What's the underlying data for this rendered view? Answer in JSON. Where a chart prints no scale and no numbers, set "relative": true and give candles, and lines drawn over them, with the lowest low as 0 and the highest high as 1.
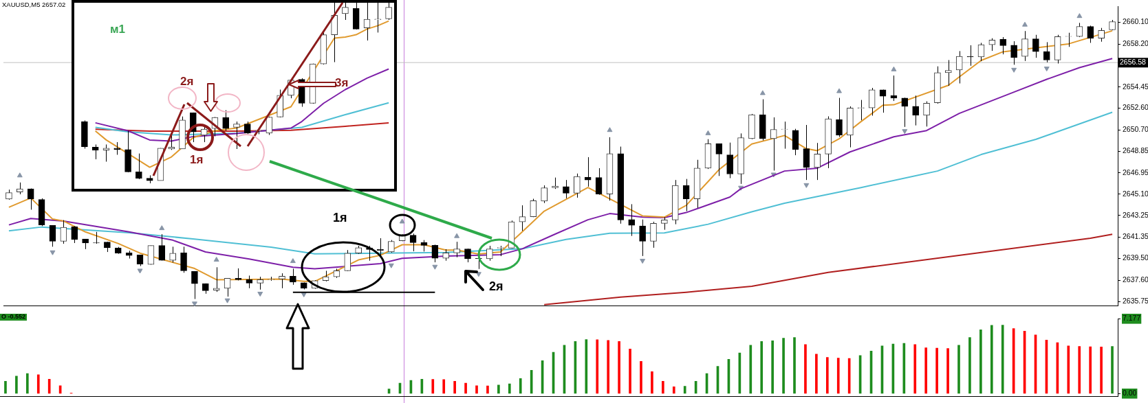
{
  "chart_data": [
    {
      "type": "candlestick",
      "title": "XAUUSD,M5 2657.02",
      "tick_labels": "y",
      "categories": [
        null,
        null,
        null,
        null,
        null,
        null,
        null,
        null,
        null,
        null,
        null,
        null,
        null,
        null,
        null,
        null,
        null,
        null,
        null,
        null,
        null,
        null,
        null,
        null,
        null,
        null,
        null,
        null,
        null,
        null,
        null,
        null,
        null,
        null,
        null,
        null,
        null,
        null,
        null,
        null,
        null,
        null,
        null,
        null,
        null,
        null,
        null,
        null,
        null,
        null,
        null,
        null,
        null,
        null,
        null,
        null,
        null,
        null,
        null,
        null,
        null,
        null,
        null,
        null,
        null,
        null,
        null,
        null,
        null,
        null,
        null,
        null,
        null,
        null,
        null,
        null,
        null,
        null,
        null,
        null,
        null,
        null,
        null,
        null,
        null,
        null,
        null,
        null,
        null,
        null,
        null,
        null,
        null,
        null,
        null,
        null,
        null,
        null,
        null,
        null,
        null,
        null
      ],
      "ohlc": [
        [
          2644.68,
          2645.5,
          2644.62,
          2645.23
        ],
        [
          2645.29,
          2646.12,
          2645.09,
          2645.56
        ],
        [
          2645.56,
          2645.6,
          2643.75,
          2644.68
        ],
        [
          2644.64,
          2644.74,
          2642.32,
          2642.42
        ],
        [
          2642.38,
          2642.4,
          2640.52,
          2640.99
        ],
        [
          2640.99,
          2642.84,
          2640.78,
          2642.21
        ],
        [
          2642.26,
          2642.32,
          2640.84,
          2641.15
        ],
        [
          2641.19,
          2641.2,
          2640.31,
          2640.84
        ],
        [
          2640.87,
          2641.81,
          2640.78,
          2640.84
        ],
        [
          2640.92,
          2640.95,
          2640.06,
          2640.43
        ],
        [
          2640.41,
          2640.5,
          2639.9,
          2639.96
        ],
        [
          2639.99,
          2640.17,
          2639.49,
          2639.76
        ],
        [
          2639.8,
          2639.82,
          2638.83,
          2639.0
        ],
        [
          2638.98,
          2640.62,
          2638.95,
          2640.62
        ],
        [
          2640.62,
          2641.61,
          2639.31,
          2639.34
        ],
        [
          2639.34,
          2640.52,
          2639.14,
          2639.96
        ],
        [
          2639.99,
          2640.52,
          2638.25,
          2638.42
        ],
        [
          2638.36,
          2638.38,
          2635.96,
          2637.3
        ],
        [
          2637.3,
          2637.32,
          2636.42,
          2636.68
        ],
        [
          2636.73,
          2638.73,
          2636.58,
          2636.9
        ],
        [
          2636.9,
          2637.76,
          2636.17,
          2637.76
        ],
        [
          2637.76,
          2638.63,
          2637.58,
          2637.64
        ],
        [
          2637.64,
          2638.0,
          2636.9,
          2637.35
        ],
        [
          2637.35,
          2637.9,
          2636.78,
          2637.64
        ],
        [
          2637.64,
          2637.9,
          2637.55,
          2637.67
        ],
        [
          2637.7,
          2638.2,
          2636.9,
          2637.95
        ],
        [
          2637.95,
          2638.6,
          2637.2,
          2637.44
        ],
        [
          2637.38,
          2637.4,
          2636.8,
          2636.9
        ],
        [
          2636.9,
          2637.6,
          2636.85,
          2637.56
        ],
        [
          2637.56,
          2638.42,
          2637.5,
          2637.9
        ],
        [
          2637.9,
          2638.6,
          2637.8,
          2638.42
        ],
        [
          2638.42,
          2640.23,
          2638.4,
          2639.96
        ],
        [
          2639.96,
          2640.6,
          2639.9,
          2640.43
        ],
        [
          2640.41,
          2640.6,
          2639.3,
          2640.27
        ],
        [
          2640.3,
          2641.26,
          2639.7,
          2640.2
        ],
        [
          2640.06,
          2641.1,
          2640.0,
          2640.99
        ],
        [
          2641.04,
          2641.6,
          2641.0,
          2641.52
        ],
        [
          2641.52,
          2641.66,
          2640.12,
          2640.88
        ],
        [
          2640.88,
          2641.1,
          2640.1,
          2640.64
        ],
        [
          2640.64,
          2640.7,
          2639.16,
          2639.51
        ],
        [
          2639.51,
          2640.3,
          2639.3,
          2639.98
        ],
        [
          2639.98,
          2640.95,
          2639.6,
          2640.33
        ],
        [
          2640.33,
          2640.35,
          2639.16,
          2639.47
        ],
        [
          2639.5,
          2639.83,
          2638.58,
          2639.48
        ],
        [
          2639.47,
          2640.6,
          2639.3,
          2640.33
        ],
        [
          2640.4,
          2640.6,
          2639.7,
          2640.45
        ],
        [
          2640.4,
          2642.8,
          2640.38,
          2642.69
        ],
        [
          2642.69,
          2644.13,
          2641.91,
          2643.14
        ],
        [
          2643.14,
          2644.7,
          2643.1,
          2644.54
        ],
        [
          2644.5,
          2645.87,
          2644.33,
          2645.66
        ],
        [
          2645.66,
          2646.55,
          2645.56,
          2645.8
        ],
        [
          2645.76,
          2646.34,
          2644.74,
          2645.19
        ],
        [
          2645.19,
          2646.9,
          2644.8,
          2646.65
        ],
        [
          2646.59,
          2648.33,
          2645.76,
          2646.34
        ],
        [
          2646.55,
          2647.37,
          2645.05,
          2645.11
        ],
        [
          2645.11,
          2650.07,
          2644.54,
          2648.64
        ],
        [
          2648.64,
          2649.25,
          2642.53,
          2642.85
        ],
        [
          2642.89,
          2644.23,
          2641.46,
          2642.38
        ],
        [
          2642.34,
          2642.89,
          2639.71,
          2640.99
        ],
        [
          2640.99,
          2642.7,
          2640.43,
          2642.55
        ],
        [
          2642.55,
          2643.1,
          2642.0,
          2642.85
        ],
        [
          2642.85,
          2646.34,
          2642.48,
          2645.87
        ],
        [
          2645.87,
          2646.43,
          2643.62,
          2644.7
        ],
        [
          2644.7,
          2648.1,
          2643.9,
          2647.37
        ],
        [
          2647.37,
          2649.9,
          2647.3,
          2649.5
        ],
        [
          2649.5,
          2649.52,
          2646.69,
          2648.6
        ],
        [
          2648.53,
          2649.6,
          2646.5,
          2646.86
        ],
        [
          2646.86,
          2650.4,
          2646.0,
          2650.03
        ],
        [
          2649.95,
          2652.1,
          2649.9,
          2652.04
        ],
        [
          2652.04,
          2653.38,
          2649.79,
          2649.95
        ],
        [
          2649.95,
          2651.8,
          2647.16,
          2650.75
        ],
        [
          2650.75,
          2651.43,
          2649.07,
          2650.78
        ],
        [
          2650.67,
          2650.8,
          2648.5,
          2649.01
        ],
        [
          2649.07,
          2651.14,
          2646.34,
          2647.43
        ],
        [
          2647.43,
          2649.57,
          2646.34,
          2648.6
        ],
        [
          2648.6,
          2651.89,
          2647.37,
          2651.68
        ],
        [
          2651.6,
          2653.5,
          2650.1,
          2650.24
        ],
        [
          2650.24,
          2652.76,
          2649.19,
          2652.62
        ],
        [
          2652.6,
          2653.32,
          2651.55,
          2652.65
        ],
        [
          2652.62,
          2654.37,
          2651.95,
          2654.2
        ],
        [
          2654.2,
          2654.22,
          2652.21,
          2653.65
        ],
        [
          2653.69,
          2655.45,
          2653.23,
          2653.48
        ],
        [
          2653.48,
          2653.52,
          2650.97,
          2652.76
        ],
        [
          2652.76,
          2653.7,
          2651.1,
          2651.98
        ],
        [
          2651.98,
          2653.2,
          2651.0,
          2653.04
        ],
        [
          2653.07,
          2656.25,
          2653.0,
          2655.7
        ],
        [
          2655.7,
          2656.8,
          2654.55,
          2655.9
        ],
        [
          2655.94,
          2657.58,
          2654.76,
          2657.12
        ],
        [
          2657.1,
          2658.09,
          2656.3,
          2657.07
        ],
        [
          2657.07,
          2658.3,
          2656.7,
          2658.14
        ],
        [
          2658.14,
          2658.7,
          2657.6,
          2658.55
        ],
        [
          2658.6,
          2658.8,
          2657.3,
          2658.06
        ],
        [
          2658.1,
          2658.44,
          2656.39,
          2657.03
        ],
        [
          2657.12,
          2659.33,
          2656.72,
          2658.65
        ],
        [
          2658.65,
          2659.0,
          2657.0,
          2657.54
        ],
        [
          2657.54,
          2658.36,
          2656.6,
          2656.8
        ],
        [
          2656.8,
          2659.0,
          2656.5,
          2658.85
        ],
        [
          2658.85,
          2659.18,
          2657.95,
          2658.88
        ],
        [
          2658.85,
          2660.04,
          2658.8,
          2659.73
        ],
        [
          2659.73,
          2659.8,
          2658.3,
          2658.71
        ],
        [
          2658.71,
          2659.6,
          2658.4,
          2659.39
        ],
        [
          2659.43,
          2660.3,
          2659.4,
          2660.15
        ]
      ],
      "series": [
        {
          "type": "line",
          "color": "#e09a2e",
          "values": [
            2643.96,
            null,
            2644.77,
            null,
            2642.93,
            2642.76,
            null,
            2641.81,
            null,
            null,
            2640.8,
            null,
            2639.96,
            null,
            null,
            null,
            null,
            2638.62,
            null,
            2637.64,
            null,
            null,
            null,
            null,
            null,
            2637.7,
            null,
            2637.5,
            2637.5,
            null,
            null,
            null,
            2639.37,
            null,
            2639.77,
            null,
            2640.69,
            null,
            2640.69,
            null,
            2640.23,
            2640.23,
            null,
            2639.88,
            null,
            2640.06,
            null,
            2641.83,
            null,
            2643.62,
            null,
            2644.65,
            null,
            2645.68,
            null,
            null,
            null,
            null,
            2643.21,
            null,
            2643.1,
            null,
            2644.13,
            null,
            2646.2,
            2647.24,
            null,
            null,
            2649.48,
            null,
            null,
            2650.22,
            null,
            2649.07,
            2648.9,
            null,
            2649.93,
            null,
            2651.43,
            null,
            2652.86,
            2652.9,
            null,
            null,
            null,
            null,
            2654.6,
            2655.33,
            null,
            2656.77,
            null,
            2657.52,
            null,
            null,
            null,
            null,
            null,
            2658.21,
            null,
            null,
            null,
            2659.35
          ]
        },
        {
          "type": "line",
          "color": "#000000",
          "values": [
            null,
            null,
            null,
            null,
            null,
            null,
            null,
            null,
            null,
            null,
            null,
            null,
            null,
            null,
            null,
            null,
            null,
            null,
            null,
            null,
            null,
            null,
            null,
            null,
            null,
            null,
            2636.55,
            null,
            null,
            null,
            null,
            null,
            null,
            null,
            null,
            null,
            null,
            null,
            null,
            2636.55,
            null,
            null,
            null,
            null,
            null,
            null,
            null,
            null,
            null,
            null,
            null,
            null,
            null,
            null,
            null,
            null,
            null,
            null,
            null,
            null,
            null,
            null,
            null,
            null,
            null,
            null,
            null,
            null,
            null,
            null,
            null,
            null,
            null,
            null,
            null,
            null,
            null,
            null,
            null,
            null,
            null,
            null,
            null,
            null,
            null,
            null,
            null,
            null,
            null,
            null,
            null,
            null,
            null,
            null,
            null,
            null,
            null,
            null,
            null,
            null,
            null,
            null
          ]
        },
        {
          "type": "line",
          "color": "#7d1fa8",
          "values": [
            2642.42,
            null,
            2642.98,
            null,
            null,
            2642.76,
            null,
            null,
            null,
            null,
            null,
            2641.81,
            null,
            null,
            null,
            2641.09,
            null,
            null,
            2640.06,
            null,
            null,
            null,
            2639.45,
            null,
            null,
            null,
            2638.73,
            null,
            2638.59,
            null,
            null,
            null,
            null,
            null,
            2639.04,
            null,
            2639.51,
            null,
            null,
            null,
            2639.71,
            null,
            null,
            null,
            null,
            2639.83,
            null,
            2640.34,
            null,
            null,
            2641.62,
            null,
            null,
            2642.87,
            null,
            2643.41,
            null,
            null,
            2643.1,
            null,
            2643.06,
            null,
            2643.5,
            null,
            null,
            null,
            2644.85,
            2645.58,
            null,
            null,
            null,
            2647.12,
            null,
            null,
            2647.37,
            null,
            null,
            2648.79,
            null,
            null,
            null,
            2650.11,
            null,
            null,
            2650.65,
            null,
            null,
            2652.15,
            null,
            null,
            null,
            null,
            2654.01,
            null,
            null,
            2655.12,
            null,
            null,
            2656.14,
            null,
            null,
            2656.93
          ]
        },
        {
          "type": "line",
          "color": "#4fbfd4",
          "values": [
            2641.91,
            null,
            null,
            2642.24,
            null,
            null,
            null,
            null,
            null,
            null,
            null,
            2641.74,
            null,
            null,
            null,
            null,
            null,
            2641.19,
            null,
            null,
            null,
            null,
            null,
            null,
            2640.48,
            null,
            null,
            null,
            2639.9,
            null,
            null,
            null,
            null,
            null,
            2639.96,
            null,
            null,
            null,
            null,
            null,
            2640.02,
            null,
            null,
            null,
            null,
            null,
            null,
            2640.34,
            null,
            null,
            null,
            2641.15,
            null,
            null,
            null,
            2641.7,
            null,
            null,
            null,
            null,
            2641.72,
            null,
            null,
            null,
            2642.48,
            null,
            null,
            null,
            2643.56,
            null,
            null,
            2644.31,
            null,
            null,
            null,
            null,
            null,
            null,
            2645.68,
            null,
            null,
            null,
            null,
            null,
            null,
            2647.12,
            null,
            null,
            null,
            2648.56,
            null,
            null,
            null,
            null,
            2649.88,
            null,
            null,
            null,
            null,
            null,
            null,
            2652.25
          ]
        },
        {
          "type": "line",
          "color": "#b01e1e",
          "values": [
            null,
            null,
            null,
            null,
            null,
            null,
            null,
            null,
            null,
            null,
            null,
            null,
            null,
            null,
            null,
            null,
            null,
            null,
            null,
            null,
            null,
            null,
            null,
            null,
            null,
            null,
            null,
            null,
            null,
            null,
            null,
            null,
            null,
            null,
            null,
            null,
            null,
            null,
            null,
            null,
            null,
            null,
            null,
            null,
            null,
            null,
            null,
            null,
            null,
            2635.46,
            null,
            null,
            null,
            null,
            null,
            null,
            2636.13,
            null,
            null,
            null,
            null,
            null,
            2636.55,
            null,
            null,
            null,
            null,
            null,
            2637.07,
            null,
            null,
            null,
            null,
            null,
            null,
            2638.28,
            null,
            null,
            null,
            null,
            null,
            null,
            null,
            null,
            null,
            null,
            2639.65,
            null,
            null,
            null,
            null,
            null,
            null,
            null,
            null,
            null,
            null,
            null,
            null,
            2641.26,
            null,
            2641.6
          ]
        },
        {
          "type": "scatter",
          "color": "#8895a7",
          "marker": "triangle",
          "values": [
            null,
            2646.72,
            null,
            null,
            null,
            null,
            null,
            null,
            null,
            null,
            null,
            null,
            null,
            null,
            2642.12,
            null,
            null,
            null,
            null,
            2639.37,
            null,
            null,
            null,
            null,
            null,
            null,
            2639.25,
            null,
            null,
            null,
            null,
            null,
            null,
            null,
            null,
            null,
            2642.7,
            null,
            null,
            null,
            null,
            2641.43,
            null,
            null,
            null,
            null,
            null,
            null,
            null,
            null,
            null,
            null,
            null,
            null,
            null,
            2650.68,
            null,
            null,
            null,
            null,
            null,
            null,
            null,
            null,
            2650.4,
            null,
            null,
            null,
            null,
            2653.9,
            null,
            null,
            null,
            null,
            null,
            null,
            2654.07,
            null,
            null,
            null,
            null,
            2655.97,
            null,
            null,
            null,
            null,
            null,
            null,
            null,
            null,
            null,
            null,
            null,
            2659.87,
            null,
            null,
            null,
            null,
            2660.62,
            null,
            null,
            null
          ]
        },
        {
          "type": "scatter",
          "color": "#8895a7",
          "marker": "triangle",
          "values": [
            null,
            null,
            null,
            null,
            2640.05,
            null,
            null,
            null,
            null,
            null,
            null,
            null,
            2638.45,
            null,
            null,
            null,
            null,
            2635.58,
            null,
            null,
            2635.86,
            null,
            null,
            2636.44,
            null,
            null,
            null,
            2636.38,
            null,
            null,
            null,
            null,
            null,
            null,
            null,
            2638.91,
            null,
            null,
            null,
            2638.79,
            null,
            null,
            null,
            2638.16,
            null,
            null,
            null,
            null,
            null,
            null,
            null,
            null,
            null,
            null,
            null,
            null,
            null,
            null,
            2639.31,
            null,
            null,
            null,
            null,
            null,
            null,
            null,
            null,
            2645.68,
            null,
            null,
            2646.83,
            null,
            null,
            2645.91,
            null,
            null,
            null,
            null,
            null,
            null,
            null,
            null,
            2650.62,
            null,
            null,
            null,
            null,
            null,
            null,
            null,
            null,
            null,
            2655.97,
            null,
            null,
            2656.08,
            null,
            null,
            null,
            null,
            null,
            null
          ]
        }
      ],
      "ylim": [
        2635.35,
        2661.48
      ],
      "yticks": [
        {
          "value": 2660.1,
          "label": "2660.10"
        },
        {
          "value": 2658.2,
          "label": "2658.20"
        },
        {
          "value": 2654.45,
          "label": "2654.45"
        },
        {
          "value": 2652.6,
          "label": "2652.60"
        },
        {
          "value": 2650.7,
          "label": "2650.70"
        },
        {
          "value": 2648.85,
          "label": "2648.85"
        },
        {
          "value": 2646.95,
          "label": "2646.95"
        },
        {
          "value": 2645.1,
          "label": "2645.10"
        },
        {
          "value": 2643.25,
          "label": "2643.25"
        },
        {
          "value": 2641.35,
          "label": "2641.35"
        },
        {
          "value": 2639.5,
          "label": "2639.50"
        },
        {
          "value": 2637.6,
          "label": "2637.60"
        },
        {
          "value": 2635.75,
          "label": "2635.75"
        }
      ],
      "ref_lines": [
        {
          "axis": "y",
          "value": 2656.58,
          "label": "2656.58",
          "color": "#c0c0c0"
        }
      ],
      "annotations": [
        "1я",
        "2я"
      ]
    },
    {
      "type": "bar",
      "tick_labels": "y",
      "categories": [
        null,
        null,
        null,
        null,
        null,
        null,
        null,
        null,
        null,
        null,
        null,
        null,
        null,
        null,
        null,
        null,
        null,
        null,
        null,
        null,
        null,
        null,
        null,
        null,
        null,
        null,
        null,
        null,
        null,
        null,
        null,
        null,
        null,
        null,
        null,
        null,
        null,
        null,
        null,
        null,
        null,
        null,
        null,
        null,
        null,
        null,
        null,
        null,
        null,
        null,
        null,
        null,
        null,
        null,
        null,
        null,
        null,
        null,
        null,
        null,
        null,
        null,
        null,
        null,
        null,
        null,
        null,
        null,
        null,
        null,
        null,
        null,
        null,
        null,
        null,
        null,
        null,
        null,
        null,
        null,
        null,
        null,
        null,
        null,
        null,
        null,
        null,
        null,
        null,
        null,
        null,
        null,
        null,
        null,
        null,
        null,
        null,
        null,
        null,
        null,
        null,
        null
      ],
      "values": [
        1.19,
        1.68,
        1.93,
        1.81,
        1.38,
        0.76,
        0.05,
        null,
        null,
        null,
        null,
        null,
        null,
        null,
        null,
        null,
        null,
        null,
        null,
        null,
        null,
        null,
        null,
        null,
        null,
        null,
        null,
        null,
        null,
        null,
        null,
        null,
        null,
        null,
        null,
        0.45,
        1.01,
        1.26,
        1.38,
        1.36,
        1.35,
        1.19,
        1.01,
        0.76,
        0.74,
        0.82,
        0.94,
        1.44,
        2.24,
        3.16,
        3.96,
        4.64,
        5.01,
        5.19,
        5.17,
        5.1,
        5.01,
        4.27,
        3.1,
        2.11,
        1.19,
        0.66,
        0.7,
        1.19,
        1.93,
        2.61,
        3.29,
        3.9,
        4.64,
        5.01,
        5.07,
        5.32,
        5.38,
        4.7,
        3.78,
        3.47,
        3.41,
        3.38,
        3.65,
        4.08,
        4.58,
        4.76,
        4.82,
        4.7,
        4.39,
        4.36,
        4.33,
        4.64,
        5.38,
        6.12,
        6.55,
        6.57,
        6.24,
        5.99,
        5.62,
        5.13,
        4.89,
        4.58,
        4.52,
        4.5,
        4.48,
        4.52
      ],
      "colors": [
        "#1e8c1e",
        "#1e8c1e",
        "#1e8c1e",
        "#ff0000",
        "#ff0000",
        "#ff0000",
        "#ff0000",
        "#ff0000",
        "#ff0000",
        "#ff0000",
        "#ff0000",
        "#ff0000",
        "#ff0000",
        "#ff0000",
        "#ff0000",
        "#ff0000",
        "#ff0000",
        "#ff0000",
        "#ff0000",
        "#ff0000",
        "#ff0000",
        "#ff0000",
        "#ff0000",
        "#ff0000",
        "#ff0000",
        "#ff0000",
        "#ff0000",
        "#ff0000",
        "#ff0000",
        "#ff0000",
        "#ff0000",
        "#ff0000",
        "#ff0000",
        "#ff0000",
        "#ff0000",
        "#1e8c1e",
        "#1e8c1e",
        "#1e8c1e",
        "#1e8c1e",
        "#ff0000",
        "#ff0000",
        "#ff0000",
        "#ff0000",
        "#ff0000",
        "#ff0000",
        "#1e8c1e",
        "#1e8c1e",
        "#1e8c1e",
        "#1e8c1e",
        "#1e8c1e",
        "#1e8c1e",
        "#1e8c1e",
        "#1e8c1e",
        "#1e8c1e",
        "#ff0000",
        "#ff0000",
        "#ff0000",
        "#ff0000",
        "#ff0000",
        "#ff0000",
        "#ff0000",
        "#ff0000",
        "#1e8c1e",
        "#1e8c1e",
        "#1e8c1e",
        "#1e8c1e",
        "#1e8c1e",
        "#1e8c1e",
        "#1e8c1e",
        "#1e8c1e",
        "#1e8c1e",
        "#1e8c1e",
        "#1e8c1e",
        "#ff0000",
        "#ff0000",
        "#ff0000",
        "#ff0000",
        "#ff0000",
        "#1e8c1e",
        "#1e8c1e",
        "#1e8c1e",
        "#1e8c1e",
        "#1e8c1e",
        "#ff0000",
        "#ff0000",
        "#ff0000",
        "#ff0000",
        "#1e8c1e",
        "#1e8c1e",
        "#1e8c1e",
        "#1e8c1e",
        "#1e8c1e",
        "#ff0000",
        "#ff0000",
        "#ff0000",
        "#ff0000",
        "#ff0000",
        "#ff0000",
        "#ff0000",
        "#ff0000",
        "#ff0000",
        "#1e8c1e"
      ],
      "ylim": [
        -0.29,
        7.177
      ],
      "yticks": [
        {
          "value": 0,
          "label": "0.00"
        },
        7.177
      ],
      "annotations": [
        "O -0.552"
      ]
    },
    {
      "type": "candlestick",
      "relative": true,
      "tick_labels": false,
      "categories": [
        null,
        null,
        null,
        null,
        null,
        null,
        null,
        null,
        null,
        null,
        null,
        null,
        null,
        null,
        null,
        null,
        null,
        null,
        null,
        null,
        null,
        null,
        null,
        null,
        null,
        null,
        null,
        null,
        null
      ],
      "ohlc": [
        [
          0.342,
          0.348,
          0.192,
          0.203
        ],
        [
          0.2,
          0.215,
          0.133,
          0.184
        ],
        [
          0.184,
          0.215,
          0.12,
          0.195
        ],
        [
          0.195,
          0.228,
          0.158,
          0.187
        ],
        [
          0.187,
          0.291,
          0.061,
          0.063
        ],
        [
          0.063,
          0.165,
          0.023,
          0.028
        ],
        [
          0.028,
          0.044,
          0.0,
          0.015
        ],
        [
          0.015,
          0.195,
          0.015,
          0.195
        ],
        [
          0.19,
          0.266,
          0.185,
          0.2
        ],
        [
          0.19,
          0.37,
          0.19,
          0.35
        ],
        [
          0.39,
          0.392,
          0.228,
          0.285
        ],
        [
          0.266,
          0.316,
          0.228,
          0.3
        ],
        [
          0.304,
          0.367,
          0.26,
          0.365
        ],
        [
          0.365,
          0.405,
          0.291,
          0.304
        ],
        [
          0.31,
          0.342,
          0.19,
          0.329
        ],
        [
          0.329,
          0.342,
          0.272,
          0.278
        ],
        [
          0.29,
          0.297,
          0.272,
          0.292
        ],
        [
          0.278,
          0.37,
          0.268,
          0.367
        ],
        [
          0.367,
          0.519,
          0.365,
          0.487
        ],
        [
          0.487,
          0.576,
          0.471,
          0.572
        ],
        [
          0.576,
          0.582,
          0.424,
          0.443
        ],
        [
          0.443,
          0.663,
          0.441,
          0.661
        ],
        [
          0.661,
          0.835,
          0.658,
          0.823
        ],
        [
          0.823,
          1.0,
          0.671,
          0.93
        ],
        [
          0.939,
          1.0,
          0.905,
          0.975
        ],
        [
          0.968,
          1.0,
          0.852,
          0.854
        ],
        [
          0.861,
          1.0,
          0.791,
          0.908
        ],
        [
          0.906,
          1.0,
          0.835,
          0.909
        ],
        [
          0.911,
          1.0,
          0.905,
          0.975
        ]
      ],
      "series": [
        {
          "type": "line",
          "color": "#e09a2e",
          "values": [
            null,
            0.29,
            0.24,
            null,
            null,
            0.127,
            0.089,
            null,
            0.146,
            null,
            0.253,
            null,
            0.291,
            null,
            0.306,
            null,
            null,
            null,
            null,
            0.424,
            null,
            null,
            null,
            0.804,
            0.81,
            0.823,
            0.854,
            0.873,
            0.899
          ]
        },
        {
          "type": "line",
          "color": "#7d1fa8",
          "values": [
            null,
            0.335,
            null,
            null,
            0.291,
            null,
            0.24,
            null,
            0.234,
            null,
            0.259,
            null,
            null,
            null,
            0.276,
            null,
            null,
            null,
            null,
            0.306,
            0.342,
            null,
            0.443,
            null,
            0.519,
            null,
            0.582,
            null,
            0.633
          ]
        },
        {
          "type": "line",
          "color": "#4fbfd4",
          "values": [
            null,
            0.31,
            null,
            null,
            0.285,
            null,
            null,
            null,
            0.268,
            null,
            null,
            null,
            null,
            null,
            0.278,
            null,
            null,
            null,
            null,
            null,
            0.31,
            null,
            null,
            null,
            0.38,
            null,
            null,
            null,
            0.446
          ]
        },
        {
          "type": "line",
          "color": "#c0221e",
          "values": [
            null,
            0.299,
            null,
            null,
            null,
            null,
            0.289,
            null,
            null,
            null,
            null,
            null,
            null,
            null,
            0.289,
            null,
            null,
            null,
            null,
            0.294,
            null,
            null,
            null,
            null,
            0.316,
            null,
            null,
            null,
            0.335
          ]
        }
      ],
      "annotations": [
        "м1",
        "2я",
        "1я",
        "3я"
      ]
    }
  ]
}
